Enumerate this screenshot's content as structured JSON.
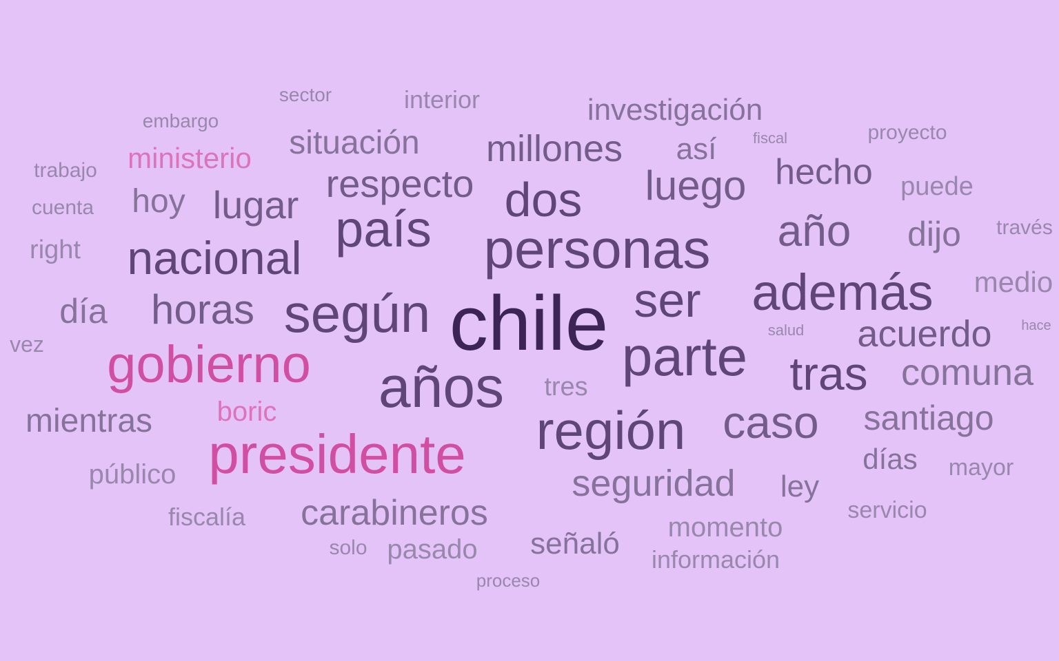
{
  "background_color": "#e4c3f8",
  "colors": {
    "xxdark": "#3c2456",
    "xdark": "#4e3468",
    "dark": "#5f4578",
    "mid": "#735c8a",
    "light": "#86729b",
    "xlight": "#9a87ad",
    "pink": "#d14fa3",
    "pink_light": "#dc73bb"
  },
  "words": {
    "chile": "chile",
    "personas": "personas",
    "anos": "años",
    "segun": "según",
    "region": "región",
    "parte": "parte",
    "pais": "país",
    "ademas": "además",
    "nacional": "nacional",
    "dos": "dos",
    "ser": "ser",
    "ano": "año",
    "tras": "tras",
    "caso": "caso",
    "horas": "horas",
    "luego": "luego",
    "respecto": "respecto",
    "acuerdo": "acuerdo",
    "comuna": "comuna",
    "millones": "millones",
    "seguridad": "seguridad",
    "carabineros": "carabineros",
    "lugar": "lugar",
    "santiago": "santiago",
    "hecho": "hecho",
    "dijo": "dijo",
    "situacion": "situación",
    "dia": "día",
    "mientras": "mientras",
    "hoy": "hoy",
    "investigacion": "investigación",
    "asi": "así",
    "medio": "medio",
    "dias": "días",
    "ley": "ley",
    "senalo": "señaló",
    "pasado": "pasado",
    "momento": "momento",
    "tres": "tres",
    "publico": "público",
    "informacion": "información",
    "puede": "puede",
    "interior": "interior",
    "fiscalia": "fiscalía",
    "right": "right",
    "servicio": "servicio",
    "mayor": "mayor",
    "traves": "través",
    "cuenta": "cuenta",
    "trabajo": "trabajo",
    "vez": "vez",
    "solo": "solo",
    "proyecto": "proyecto",
    "sector": "sector",
    "embargo": "embargo",
    "proceso": "proceso",
    "fiscal": "fiscal",
    "salud": "salud",
    "hace": "hace",
    "gobierno": "gobierno",
    "presidente": "presidente",
    "ministerio": "ministerio",
    "boric": "boric"
  }
}
